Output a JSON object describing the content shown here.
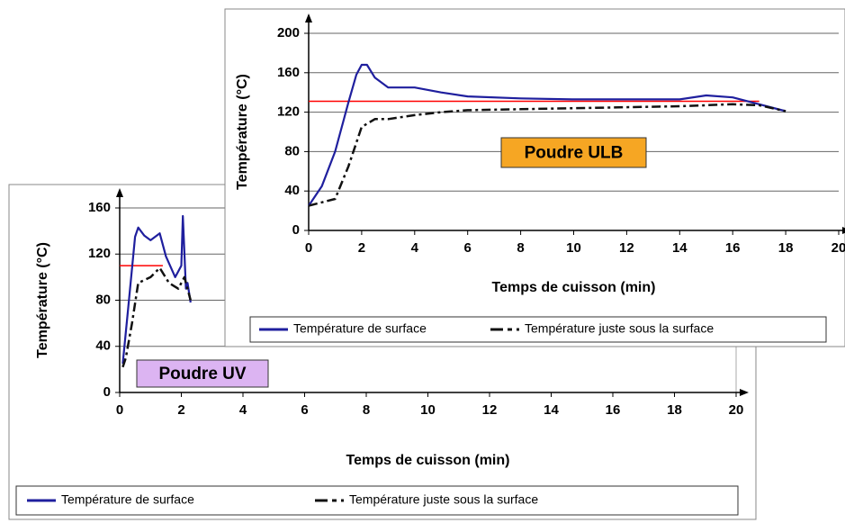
{
  "chart_data": [
    {
      "type": "line",
      "annotation": "Poudre UV",
      "annotation_color": "#dcb4f2",
      "x_label": "Temps de cuisson (min)",
      "y_label": "Température (°C)",
      "xlim": [
        0,
        20
      ],
      "xticks": [
        0,
        2,
        4,
        6,
        8,
        10,
        12,
        14,
        16,
        18,
        20
      ],
      "ylim": [
        0,
        160
      ],
      "yticks": [
        0,
        40,
        80,
        120,
        160
      ],
      "grid": true,
      "reference_line": {
        "value": 110,
        "x": [
          0,
          1.4
        ],
        "color": "#ff0000"
      },
      "series": [
        {
          "name": "Température de surface",
          "color": "#1f1f9e",
          "linestyle": "solid",
          "x": [
            0.1,
            0.3,
            0.5,
            0.6,
            0.8,
            1.0,
            1.3,
            1.5,
            1.8,
            2.0,
            2.05,
            2.15,
            2.2,
            2.3
          ],
          "values": [
            25,
            80,
            135,
            143,
            136,
            132,
            138,
            118,
            100,
            110,
            153,
            90,
            95,
            78
          ]
        },
        {
          "name": "Température juste sous la surface",
          "color": "#111111",
          "linestyle": "dashdot",
          "x": [
            0.1,
            0.2,
            0.4,
            0.6,
            1.0,
            1.3,
            1.6,
            1.9,
            2.1,
            2.3
          ],
          "values": [
            22,
            30,
            60,
            95,
            100,
            108,
            95,
            90,
            100,
            80
          ]
        }
      ]
    },
    {
      "type": "line",
      "annotation": "Poudre ULB",
      "annotation_color": "#f6a623",
      "x_label": "Temps de cuisson (min)",
      "y_label": "Température (°C)",
      "xlim": [
        0,
        20
      ],
      "xticks": [
        0,
        2,
        4,
        6,
        8,
        10,
        12,
        14,
        16,
        18,
        20
      ],
      "ylim": [
        0,
        200
      ],
      "yticks": [
        0,
        40,
        80,
        120,
        160,
        200
      ],
      "grid": true,
      "reference_line": {
        "value": 131,
        "x": [
          0,
          17
        ],
        "color": "#ff0000"
      },
      "series": [
        {
          "name": "Température de surface",
          "color": "#1f1f9e",
          "linestyle": "solid",
          "x": [
            0,
            0.5,
            1,
            1.5,
            1.8,
            2,
            2.2,
            2.5,
            3,
            4,
            5,
            6,
            8,
            10,
            12,
            14,
            15,
            16,
            17,
            18
          ],
          "values": [
            25,
            45,
            80,
            130,
            158,
            168,
            168,
            155,
            145,
            145,
            140,
            136,
            134,
            133,
            133,
            133,
            137,
            135,
            128,
            121
          ]
        },
        {
          "name": "Température juste sous la surface",
          "color": "#111111",
          "linestyle": "dashdot",
          "x": [
            0,
            1,
            1.5,
            2,
            2.5,
            3,
            4,
            5,
            6,
            8,
            10,
            12,
            14,
            16,
            17,
            18
          ],
          "values": [
            25,
            32,
            65,
            105,
            113,
            113,
            117,
            120,
            122,
            123,
            124,
            125,
            126,
            128,
            127,
            121
          ]
        }
      ]
    }
  ]
}
